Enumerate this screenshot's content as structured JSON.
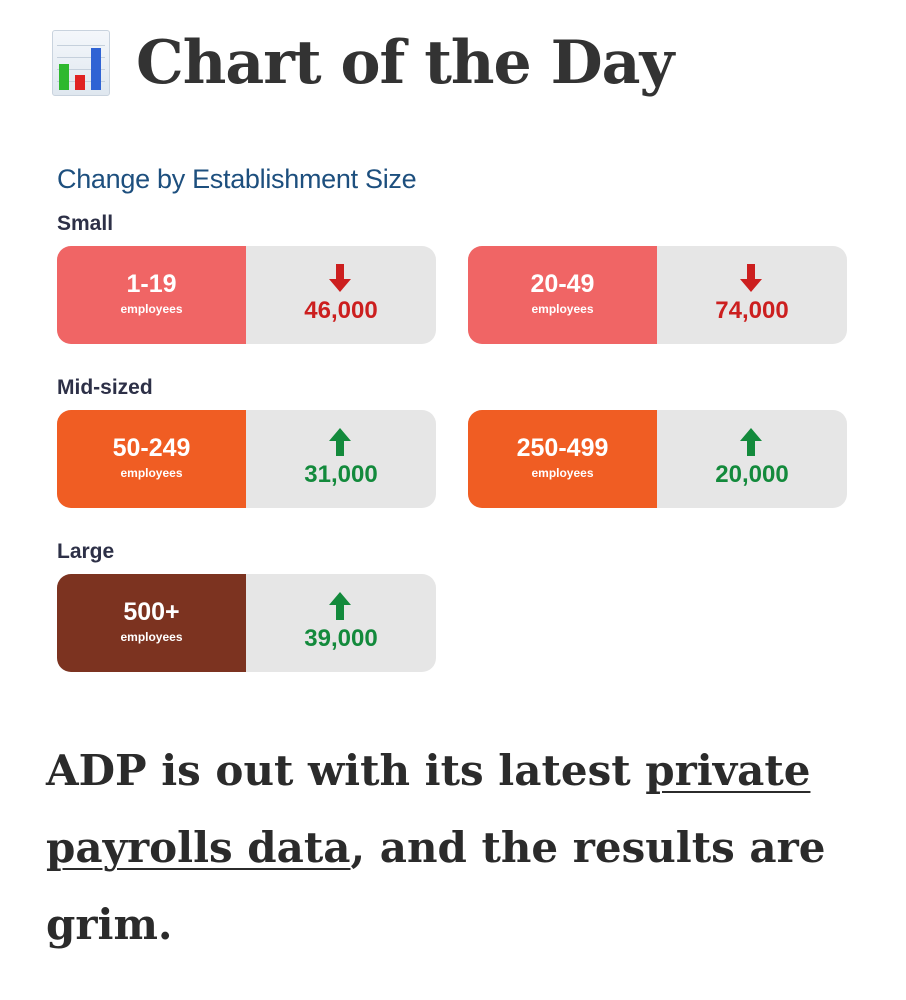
{
  "header": {
    "title": "Chart of the Day",
    "icon": "bar-chart-icon"
  },
  "chart_data": {
    "type": "table",
    "title": "Change by Establishment Size",
    "groups": [
      {
        "label": "Small",
        "color": "#f06565",
        "items": [
          {
            "range": "1-19",
            "unit": "employees",
            "value_text": "46,000",
            "value": -46000,
            "direction": "down"
          },
          {
            "range": "20-49",
            "unit": "employees",
            "value_text": "74,000",
            "value": -74000,
            "direction": "down"
          }
        ]
      },
      {
        "label": "Mid-sized",
        "color": "#f05d23",
        "items": [
          {
            "range": "50-249",
            "unit": "employees",
            "value_text": "31,000",
            "value": 31000,
            "direction": "up"
          },
          {
            "range": "250-499",
            "unit": "employees",
            "value_text": "20,000",
            "value": 20000,
            "direction": "up"
          }
        ]
      },
      {
        "label": "Large",
        "color": "#7c3320",
        "items": [
          {
            "range": "500+",
            "unit": "employees",
            "value_text": "39,000",
            "value": 39000,
            "direction": "up"
          }
        ]
      }
    ],
    "colors": {
      "down": "#cc1f1f",
      "up": "#138a3c",
      "value_box": "#e6e6e6"
    }
  },
  "article": {
    "text_before": "ADP is out with its latest ",
    "link_text": "private payrolls data",
    "text_after": ", and the results are grim."
  }
}
